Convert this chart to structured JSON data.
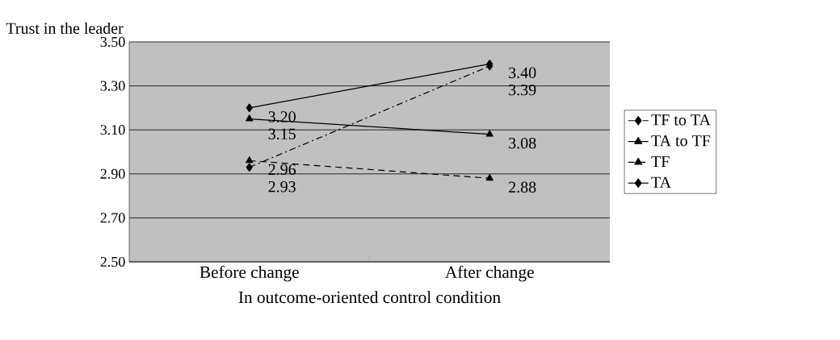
{
  "chart_data": {
    "type": "line",
    "ylabel": "Trust in the leader",
    "xlabel": "In outcome-oriented control condition",
    "categories": [
      "Before change",
      "After change"
    ],
    "series": [
      {
        "name": "TF to TA",
        "color": "#000000",
        "values": [
          2.93,
          3.39
        ],
        "value_labels": [
          "2.93",
          "3.39"
        ],
        "marker": "diamond",
        "line_style": "dashdot"
      },
      {
        "name": "TA to TF",
        "color": "#000000",
        "values": [
          3.15,
          3.08
        ],
        "value_labels": [
          "3.15",
          "3.08"
        ],
        "marker": "triangle",
        "line_style": "solid"
      },
      {
        "name": "TF",
        "color": "#000000",
        "values": [
          2.96,
          2.88
        ],
        "value_labels": [
          "2.96",
          "2.88"
        ],
        "marker": "triangle",
        "line_style": "dashed"
      },
      {
        "name": "TA",
        "color": "#000000",
        "values": [
          3.2,
          3.4
        ],
        "value_labels": [
          "3.20",
          "3.40"
        ],
        "marker": "diamond",
        "line_style": "solid"
      }
    ],
    "ylim": [
      2.5,
      3.5
    ],
    "yticks": [
      {
        "value": 2.5,
        "label": "2.50"
      },
      {
        "value": 2.7,
        "label": "2.70"
      },
      {
        "value": 2.9,
        "label": "2.90"
      },
      {
        "value": 3.1,
        "label": "3.10"
      },
      {
        "value": 3.3,
        "label": "3.30"
      },
      {
        "value": 3.5,
        "label": "3.50"
      }
    ],
    "grid": "y",
    "legend": "right"
  }
}
